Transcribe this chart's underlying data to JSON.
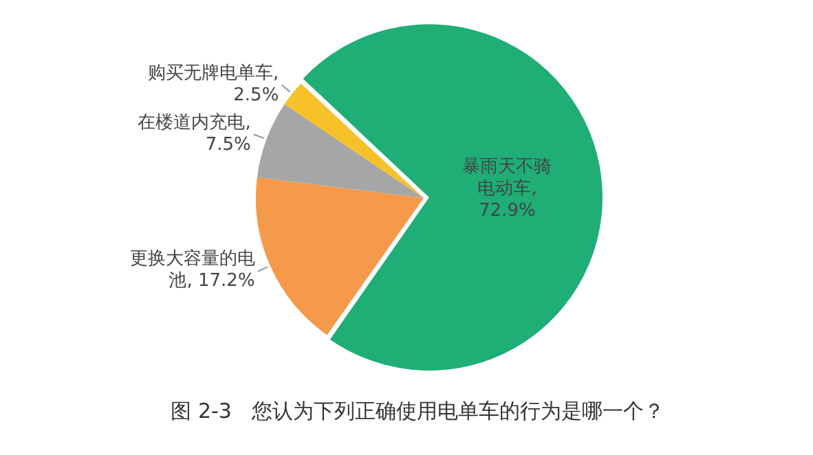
{
  "chart_data": {
    "type": "pie",
    "title": "图 2-3   您认为下列正确使用电单车的行为是哪一个？",
    "categories": [
      "暴雨天不骑电动车",
      "更换大容量的电池",
      "在楼道内充电",
      "购买无牌电单车"
    ],
    "values": [
      72.9,
      17.2,
      7.5,
      2.5
    ],
    "colors": [
      "#1fae75",
      "#f5994a",
      "#a6a6a6",
      "#f7c12a"
    ],
    "value_labels": [
      ", 72.9%",
      ", 17.2%",
      ", 7.5%",
      ", 2.5%"
    ],
    "legend": false
  }
}
